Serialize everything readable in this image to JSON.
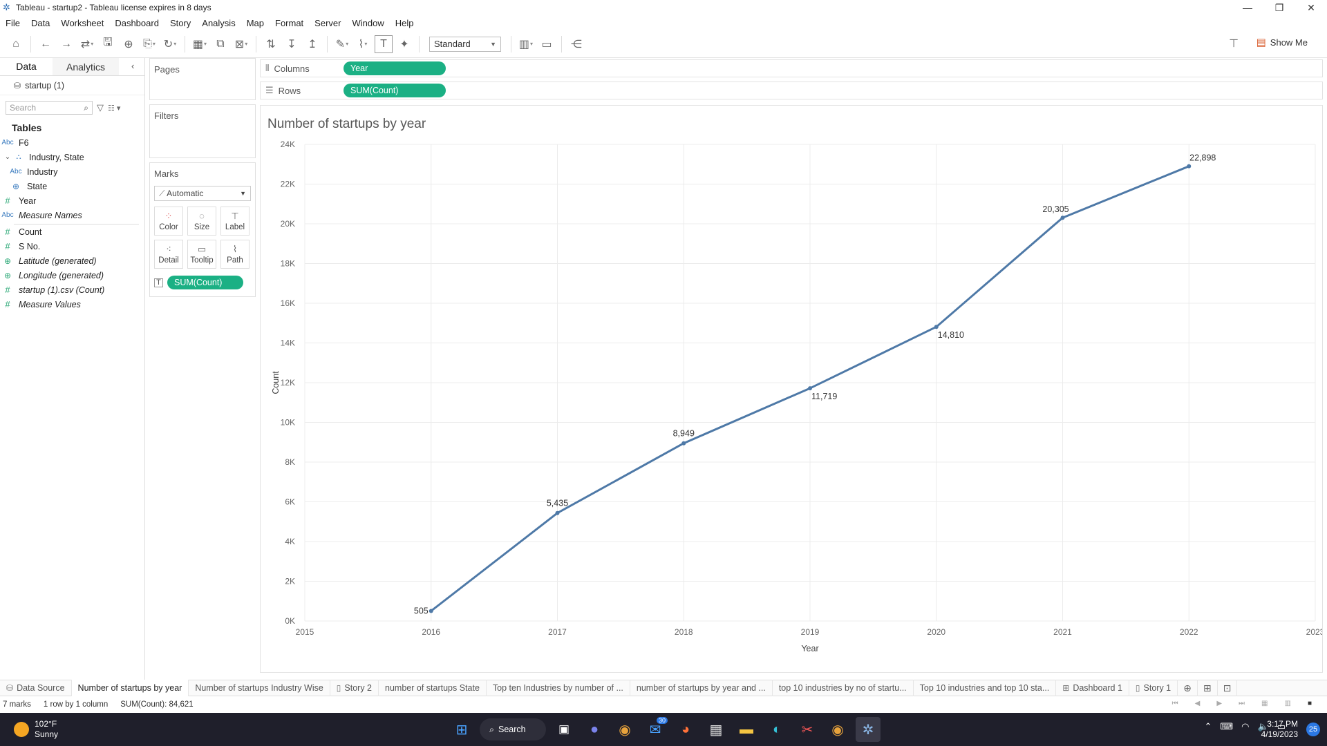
{
  "window": {
    "title": "Tableau - startup2 - Tableau license expires in 8 days"
  },
  "menu": [
    "File",
    "Data",
    "Worksheet",
    "Dashboard",
    "Story",
    "Analysis",
    "Map",
    "Format",
    "Server",
    "Window",
    "Help"
  ],
  "toolbar": {
    "fit_select": "Standard",
    "show_me": "Show Me"
  },
  "datapane": {
    "tabs": [
      "Data",
      "Analytics"
    ],
    "source": "startup (1)",
    "search_placeholder": "Search",
    "tables_heading": "Tables",
    "fields": [
      {
        "type": "Abc",
        "name": "F6"
      },
      {
        "type": "hier",
        "name": "Industry, State"
      },
      {
        "type": "Abc",
        "name": "Industry"
      },
      {
        "type": "geo",
        "name": "State"
      },
      {
        "type": "#",
        "name": "Year"
      },
      {
        "type": "Abc",
        "name": "Measure Names"
      },
      {
        "type": "#",
        "name": "Count"
      },
      {
        "type": "#",
        "name": "S No."
      },
      {
        "type": "geo",
        "name": "Latitude (generated)"
      },
      {
        "type": "geo",
        "name": "Longitude (generated)"
      },
      {
        "type": "#",
        "name": "startup (1).csv (Count)"
      },
      {
        "type": "#",
        "name": "Measure Values"
      }
    ]
  },
  "cards": {
    "pages": "Pages",
    "filters": "Filters",
    "marks": "Marks",
    "mark_type": "Automatic",
    "mark_buttons": [
      "Color",
      "Size",
      "Label",
      "Detail",
      "Tooltip",
      "Path"
    ],
    "mark_pill": "SUM(Count)"
  },
  "shelves": {
    "columns_label": "Columns",
    "columns_pill": "Year",
    "rows_label": "Rows",
    "rows_pill": "SUM(Count)"
  },
  "chart_data": {
    "type": "line",
    "title": "Number of startups by year",
    "xlabel": "Year",
    "ylabel": "Count",
    "x": [
      2016,
      2017,
      2018,
      2019,
      2020,
      2021,
      2022
    ],
    "values": [
      505,
      5435,
      8949,
      11719,
      14810,
      20305,
      22898
    ],
    "data_labels": [
      "505",
      "5,435",
      "8,949",
      "11,719",
      "14,810",
      "20,305",
      "22,898"
    ],
    "xlim": [
      2015,
      2023
    ],
    "x_ticks": [
      "2015",
      "2016",
      "2017",
      "2018",
      "2019",
      "2020",
      "2021",
      "2022",
      "2023"
    ],
    "ylim": [
      0,
      24000
    ],
    "y_ticks": [
      "0K",
      "2K",
      "4K",
      "6K",
      "8K",
      "10K",
      "12K",
      "14K",
      "16K",
      "18K",
      "20K",
      "22K",
      "24K"
    ],
    "grid": true,
    "line_color": "#4e79a7"
  },
  "sheet_tabs": [
    {
      "label": "Data Source",
      "icon": "datasource"
    },
    {
      "label": "Number of startups by year",
      "active": true
    },
    {
      "label": "Number of startups Industry Wise"
    },
    {
      "label": "Story 2",
      "icon": "story"
    },
    {
      "label": "number of startups State"
    },
    {
      "label": "Top ten Industries by number of ..."
    },
    {
      "label": "number of startups  by year and ..."
    },
    {
      "label": "top 10 industries by no of startu..."
    },
    {
      "label": "Top 10  industries and top 10 sta..."
    },
    {
      "label": "Dashboard 1",
      "icon": "dashboard"
    },
    {
      "label": "Story 1",
      "icon": "story"
    }
  ],
  "status": {
    "marks": "7 marks",
    "rows_cols": "1 row by 1 column",
    "sum": "SUM(Count): 84,621"
  },
  "taskbar": {
    "temp": "102°F",
    "weather": "Sunny",
    "search": "Search",
    "mail_badge": "30",
    "time": "3:17 PM",
    "date": "4/19/2023",
    "notifications": "25"
  }
}
